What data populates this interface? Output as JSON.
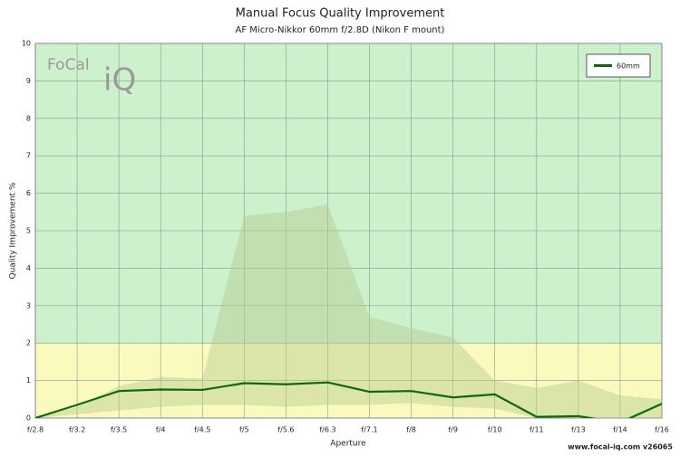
{
  "chart_data": {
    "type": "line",
    "title": "Manual Focus Quality Improvement",
    "subtitle": "AF Micro-Nikkor 60mm f/2.8D (Nikon F mount)",
    "y_label": "Quality Improvement %",
    "x_label": "Aperture",
    "footer": "www.focal-iq.com  v26065",
    "logo": [
      "FoCal",
      "iQ"
    ],
    "categories": [
      "f/2.8",
      "f/3.2",
      "f/3.5",
      "f/4",
      "f/4.5",
      "f/5",
      "f/5.6",
      "f/6.3",
      "f/7.1",
      "f/8",
      "f/9",
      "f/10",
      "f/11",
      "f/13",
      "f/14",
      "f/16"
    ],
    "series": [
      {
        "name": "60mm",
        "color": "#0a6b0a",
        "values": [
          0,
          0.35,
          0.72,
          0.76,
          0.75,
          0.93,
          0.9,
          0.95,
          0.7,
          0.72,
          0.55,
          0.63,
          0.03,
          0.05,
          -0.12,
          0.38
        ]
      }
    ],
    "range": {
      "color": "#b5c98f",
      "upper": [
        0,
        0.3,
        0.85,
        1.1,
        1.05,
        5.4,
        5.5,
        5.7,
        2.7,
        2.4,
        2.15,
        1.0,
        0.8,
        1.0,
        0.6,
        0.5
      ],
      "lower": [
        0,
        0.1,
        0.2,
        0.3,
        0.35,
        0.35,
        0.3,
        0.35,
        0.35,
        0.4,
        0.3,
        0.25,
        0,
        0,
        0,
        0
      ]
    },
    "zones": [
      {
        "from": 0,
        "to": 2,
        "color": "#fafabf"
      },
      {
        "from": 2,
        "to": 10,
        "color": "#cdf0cd"
      }
    ],
    "ylim": [
      0,
      10
    ],
    "yticks": [
      0,
      1,
      2,
      3,
      4,
      5,
      6,
      7,
      8,
      9,
      10
    ],
    "grid": true,
    "legend": "top-right"
  }
}
